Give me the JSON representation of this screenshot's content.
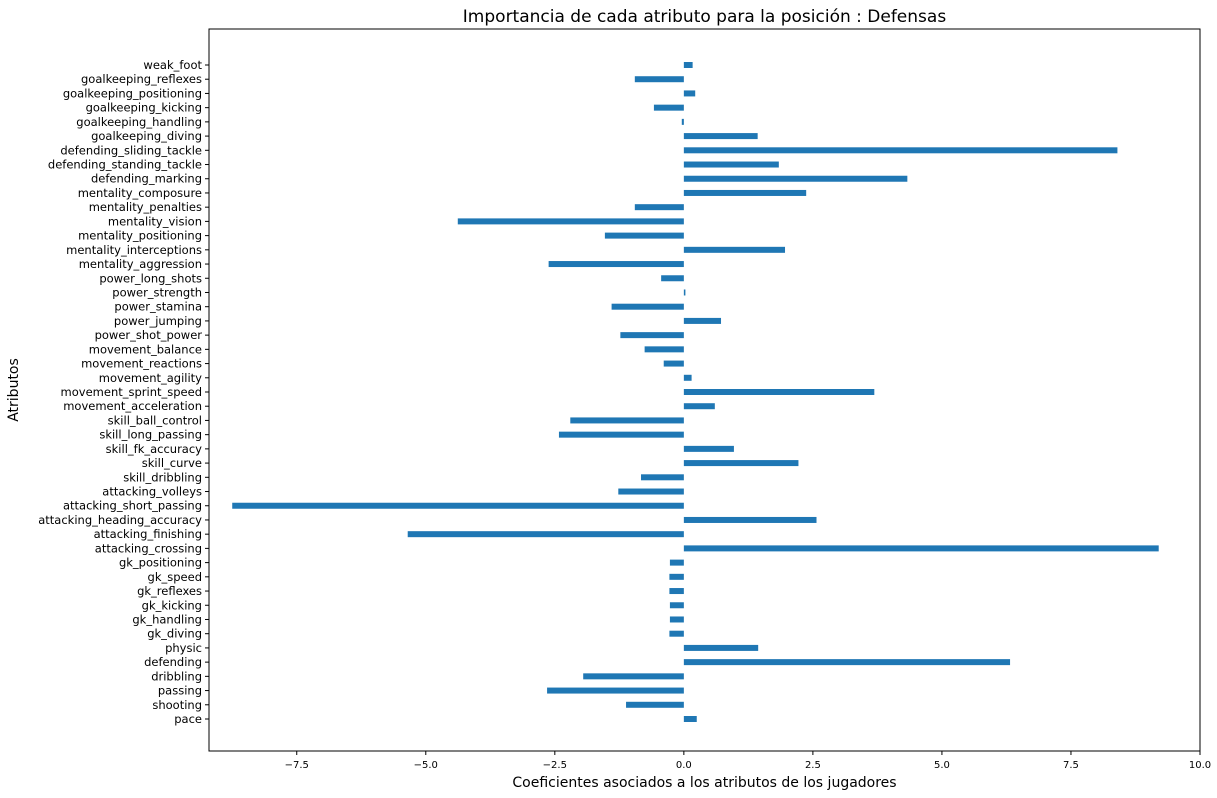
{
  "chart_data": {
    "type": "bar",
    "orientation": "horizontal",
    "title": "Importancia de cada atributo para la posición : Defensas",
    "xlabel": "Coeficientes asociados a los atributos de los jugadores",
    "ylabel": "Atributos",
    "xlim": [
      -9.2,
      10.0
    ],
    "xticks": [
      -7.5,
      -5.0,
      -2.5,
      0.0,
      2.5,
      5.0,
      7.5,
      10.0
    ],
    "xtick_labels": [
      "−7.5",
      "−5.0",
      "−2.5",
      "0.0",
      "2.5",
      "5.0",
      "7.5",
      "10.0"
    ],
    "grid": false,
    "bar_color": "#1f77b4",
    "categories": [
      "pace",
      "shooting",
      "passing",
      "dribbling",
      "defending",
      "physic",
      "gk_diving",
      "gk_handling",
      "gk_kicking",
      "gk_reflexes",
      "gk_speed",
      "gk_positioning",
      "attacking_crossing",
      "attacking_finishing",
      "attacking_heading_accuracy",
      "attacking_short_passing",
      "attacking_volleys",
      "skill_dribbling",
      "skill_curve",
      "skill_fk_accuracy",
      "skill_long_passing",
      "skill_ball_control",
      "movement_acceleration",
      "movement_sprint_speed",
      "movement_agility",
      "movement_reactions",
      "movement_balance",
      "power_shot_power",
      "power_jumping",
      "power_stamina",
      "power_strength",
      "power_long_shots",
      "mentality_aggression",
      "mentality_interceptions",
      "mentality_positioning",
      "mentality_vision",
      "mentality_penalties",
      "mentality_composure",
      "defending_marking",
      "defending_standing_tackle",
      "defending_sliding_tackle",
      "goalkeeping_diving",
      "goalkeeping_handling",
      "goalkeeping_kicking",
      "goalkeeping_positioning",
      "goalkeeping_reflexes",
      "weak_foot"
    ],
    "values": [
      0.25,
      -1.12,
      -2.65,
      -1.95,
      6.32,
      1.44,
      -0.28,
      -0.27,
      -0.27,
      -0.28,
      -0.28,
      -0.27,
      9.2,
      -5.35,
      2.57,
      -8.75,
      -1.27,
      -0.83,
      2.22,
      0.97,
      -2.42,
      -2.2,
      0.6,
      3.69,
      0.15,
      -0.39,
      -0.76,
      -1.23,
      0.72,
      -1.4,
      0.03,
      -0.44,
      -2.62,
      1.96,
      -1.53,
      -4.38,
      -0.95,
      2.37,
      4.33,
      1.84,
      8.4,
      1.43,
      -0.04,
      -0.58,
      0.22,
      -0.95,
      0.17
    ]
  }
}
